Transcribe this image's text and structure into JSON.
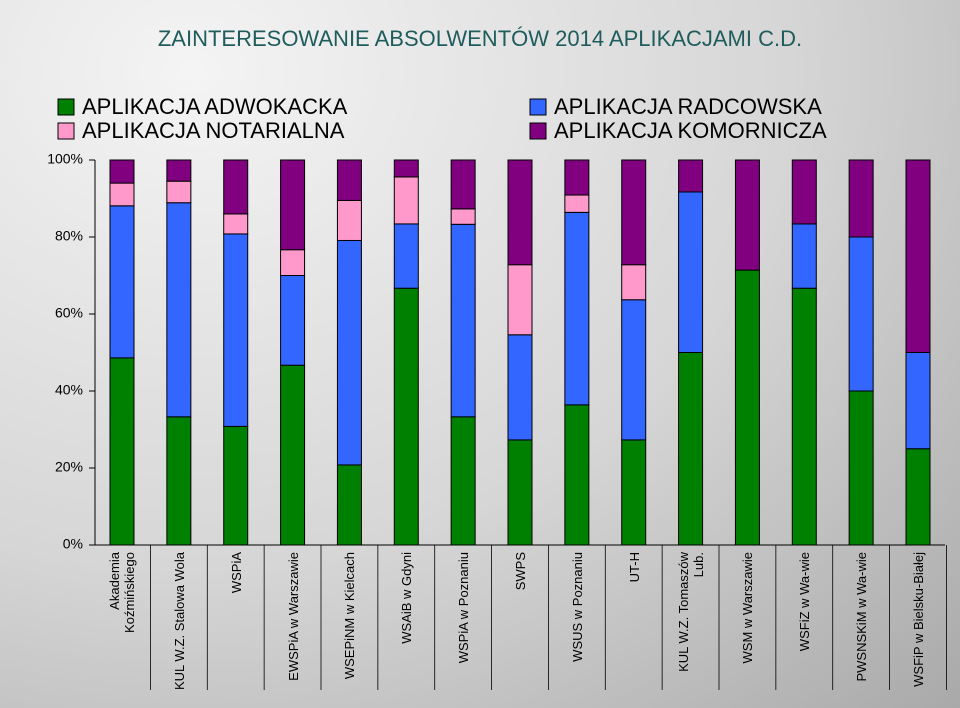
{
  "chart_data": {
    "type": "stacked_bar",
    "title": "ZAINTERESOWANIE ABSOLWENTÓW 2014 APLIKACJAMI C.D.",
    "categories": [
      "Akademia Koźmińskiego",
      "KUL W.Z. Stalowa Wola",
      "WSPiA",
      "EWSPiA w Warszawie",
      "WSEPiNM w Kielcach",
      "WSAiB w Gdyni",
      "WSPiA w Poznaniu",
      "SWPS",
      "WSUS w Poznaniu",
      "UT-H",
      "KUL W.Z. Tomaszów Lub.",
      "WSM w Warszawie",
      "WSFiZ w Wa-wie",
      "PWSNSKiM w Wa-wie",
      "WSFiP w Bielsku-Białej"
    ],
    "series": [
      {
        "name": "APLIKACJA ADWOKACKA",
        "color": "#008000",
        "values": [
          48.6,
          33.3,
          30.8,
          46.7,
          20.8,
          66.7,
          33.3,
          27.3,
          36.4,
          27.3,
          50.0,
          71.4,
          66.7,
          40.0,
          25.0
        ]
      },
      {
        "name": "APLIKACJA RADCOWSKA",
        "color": "#3366ff",
        "values": [
          39.5,
          55.6,
          50.0,
          23.3,
          58.3,
          16.7,
          50.0,
          27.3,
          50.0,
          36.4,
          41.7,
          0,
          16.7,
          40.0,
          25.0
        ]
      },
      {
        "name": "APLIKACJA NOTARIALNA",
        "color": "#ff99cc",
        "values": [
          5.9,
          5.6,
          5.2,
          6.7,
          10.4,
          12.2,
          4.0,
          18.2,
          4.5,
          9.1,
          0,
          0,
          0,
          0,
          0
        ]
      },
      {
        "name": "APLIKACJA KOMORNICZA",
        "color": "#800080",
        "values": [
          6.0,
          5.5,
          14.0,
          23.3,
          10.5,
          4.4,
          12.7,
          27.2,
          9.1,
          27.2,
          8.3,
          28.6,
          16.6,
          20.0,
          50.0
        ]
      }
    ],
    "ylim": [
      0,
      100
    ],
    "yticks": [
      {
        "value": 0,
        "label": "0%"
      },
      {
        "value": 20,
        "label": "20%"
      },
      {
        "value": 40,
        "label": "40%"
      },
      {
        "value": 60,
        "label": "60%"
      },
      {
        "value": 80,
        "label": "80%"
      },
      {
        "value": 100,
        "label": "100%"
      }
    ]
  }
}
